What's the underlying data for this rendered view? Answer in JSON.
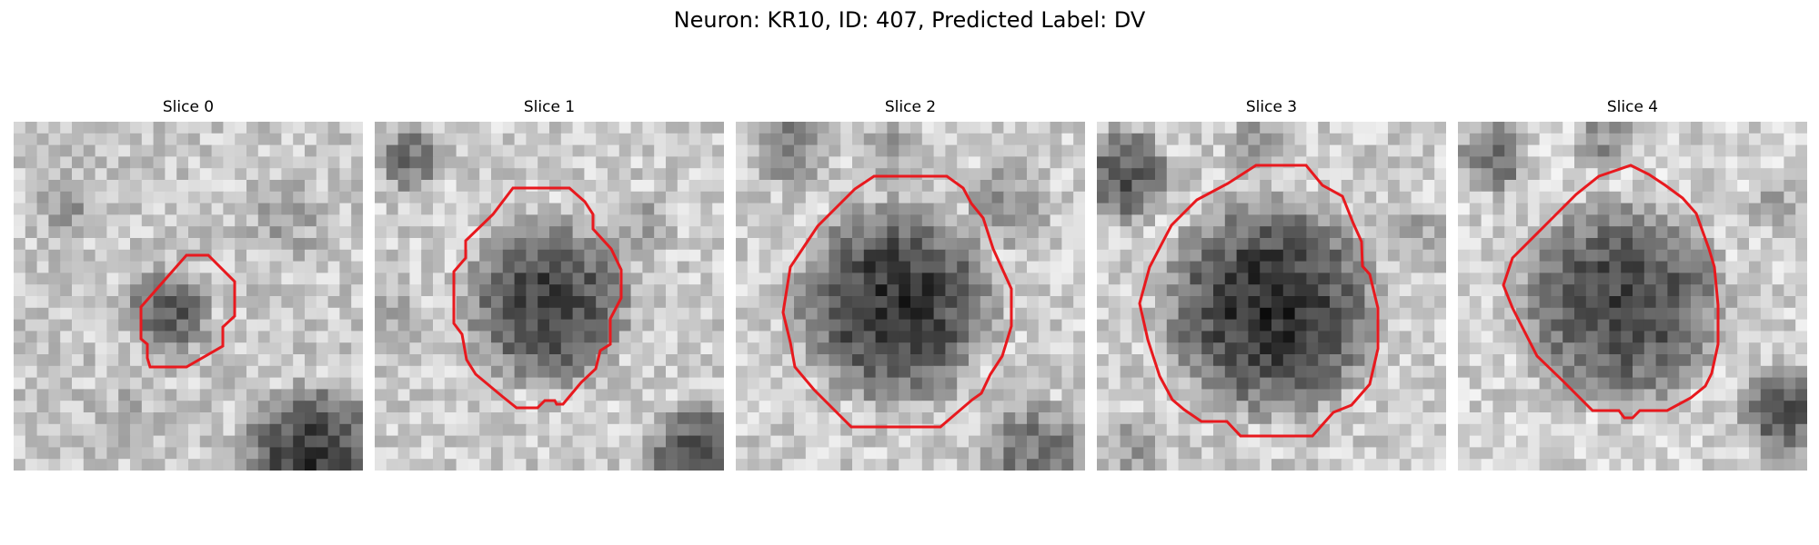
{
  "figure": {
    "title": "Neuron: KR10, ID: 407, Predicted Label: DV",
    "contour_color": "#e8191e"
  },
  "slices": [
    {
      "title": "Slice 0"
    },
    {
      "title": "Slice 1"
    },
    {
      "title": "Slice 2"
    },
    {
      "title": "Slice 3"
    },
    {
      "title": "Slice 4"
    }
  ]
}
